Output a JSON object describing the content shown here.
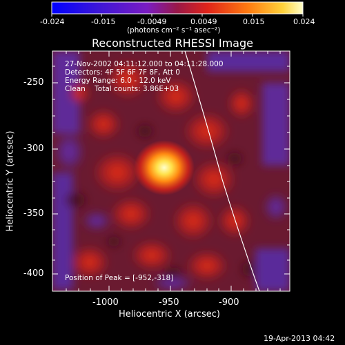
{
  "colorbar": {
    "tick_labels": [
      "-0.024",
      "-0.015",
      "-0.0049",
      "0.0049",
      "0.015",
      "0.024"
    ],
    "units_label": "(photons cm⁻² s⁻¹ asec⁻²)",
    "range": [
      -0.024,
      0.024
    ]
  },
  "title": "Reconstructed RHESSI Image",
  "overlay": {
    "time_range": "27-Nov-2002 04:11:12.000 to 04:11:28.000",
    "detectors": "Detectors: 4F 5F 6F 7F 8F, Att 0",
    "energy": "Energy Range: 6.0 - 12.0 keV",
    "clean": "Clean    Total counts: 3.86E+03",
    "peak": "Position of Peak = [-952,-318]"
  },
  "axes": {
    "x_label": "Heliocentric X (arcsec)",
    "y_label": "Heliocentric Y (arcsec)",
    "x_ticks": [
      "-1000",
      "-950",
      "-900"
    ],
    "y_ticks": [
      "-250",
      "-300",
      "-350",
      "-400"
    ],
    "x_range": [
      -1045,
      -873
    ],
    "y_range": [
      -411,
      -233
    ]
  },
  "peak_position": [
    -952,
    -318
  ],
  "footer_timestamp": "19-Apr-2013 04:42"
}
